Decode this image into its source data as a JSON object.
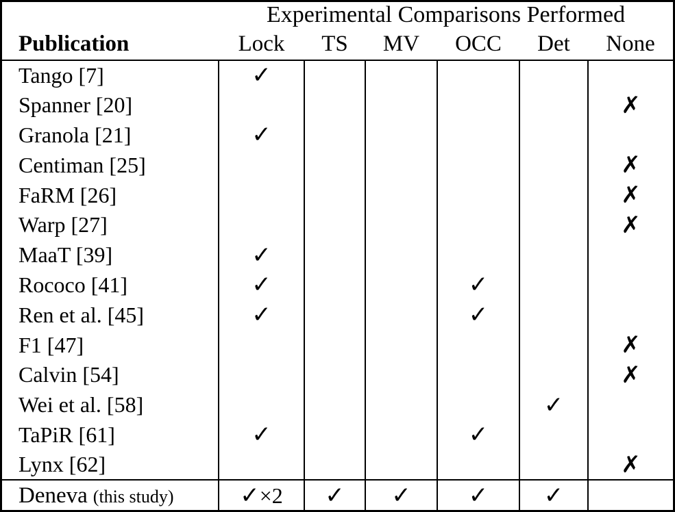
{
  "page": {
    "background_color": "#ffffff",
    "text_color": "#000000"
  },
  "table": {
    "title": "Experimental Comparisons Performed",
    "publication_header": "Publication",
    "mark_columns": [
      "Lock",
      "TS",
      "MV",
      "OCC",
      "Det",
      "None"
    ],
    "symbols": {
      "check": "✓",
      "cross": "✗"
    },
    "rows": [
      {
        "publication": "Tango [7]",
        "marks": [
          "✓",
          "",
          "",
          "",
          "",
          ""
        ]
      },
      {
        "publication": "Spanner [20]",
        "marks": [
          "",
          "",
          "",
          "",
          "",
          "✗"
        ]
      },
      {
        "publication": "Granola [21]",
        "marks": [
          "✓",
          "",
          "",
          "",
          "",
          ""
        ]
      },
      {
        "publication": "Centiman [25]",
        "marks": [
          "",
          "",
          "",
          "",
          "",
          "✗"
        ]
      },
      {
        "publication": "FaRM [26]",
        "marks": [
          "",
          "",
          "",
          "",
          "",
          "✗"
        ]
      },
      {
        "publication": "Warp [27]",
        "marks": [
          "",
          "",
          "",
          "",
          "",
          "✗"
        ]
      },
      {
        "publication": "MaaT [39]",
        "marks": [
          "✓",
          "",
          "",
          "",
          "",
          ""
        ]
      },
      {
        "publication": "Rococo [41]",
        "marks": [
          "✓",
          "",
          "",
          "✓",
          "",
          ""
        ]
      },
      {
        "publication": "Ren et al. [45]",
        "marks": [
          "✓",
          "",
          "",
          "✓",
          "",
          ""
        ]
      },
      {
        "publication": "F1 [47]",
        "marks": [
          "",
          "",
          "",
          "",
          "",
          "✗"
        ]
      },
      {
        "publication": "Calvin [54]",
        "marks": [
          "",
          "",
          "",
          "",
          "",
          "✗"
        ]
      },
      {
        "publication": "Wei et al. [58]",
        "marks": [
          "",
          "",
          "",
          "",
          "✓",
          ""
        ]
      },
      {
        "publication": "TaPiR [61]",
        "marks": [
          "✓",
          "",
          "",
          "✓",
          "",
          ""
        ]
      },
      {
        "publication": "Lynx [62]",
        "marks": [
          "",
          "",
          "",
          "",
          "",
          "✗"
        ]
      }
    ],
    "summary_row": {
      "publication": "Deneva",
      "publication_note": "(this study)",
      "marks": [
        "✓×2",
        "✓",
        "✓",
        "✓",
        "✓",
        ""
      ]
    }
  }
}
